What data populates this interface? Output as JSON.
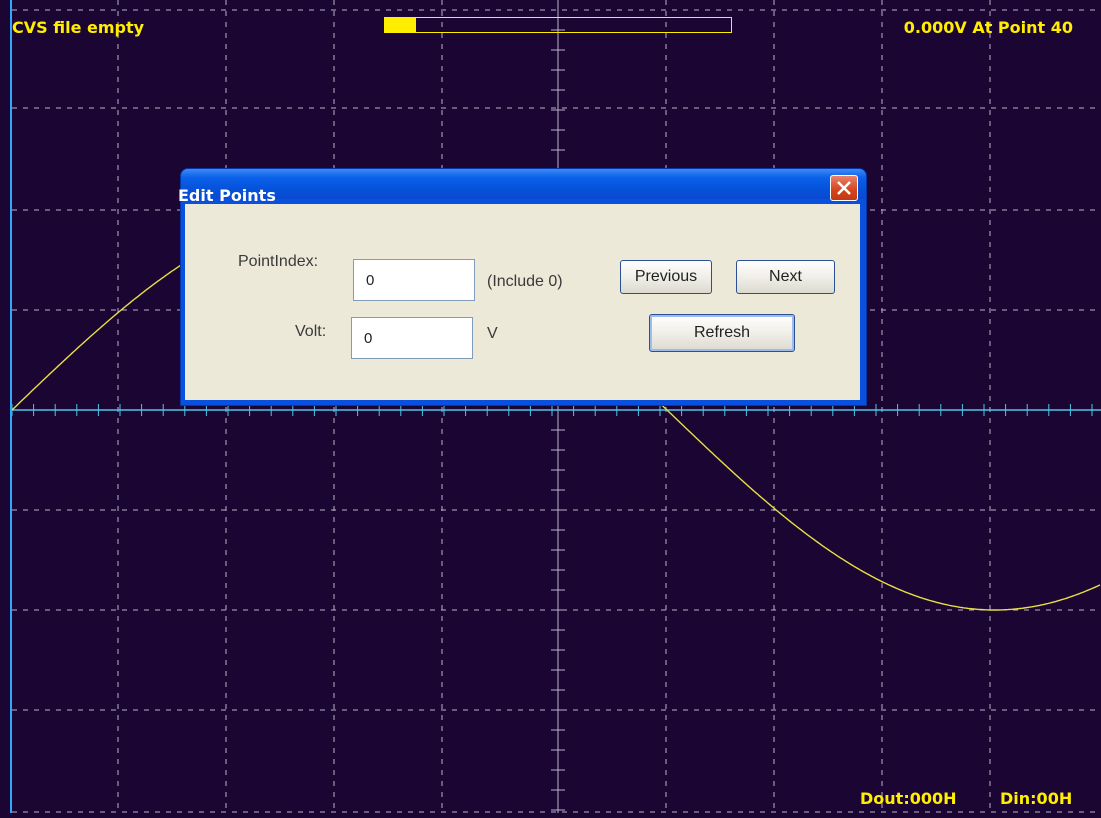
{
  "status": {
    "file_message": "CVS file empty",
    "readout": "0.000V At Point 40",
    "dout": "Dout:000H",
    "din": "Din:00H",
    "progress_fraction": 0.09
  },
  "colors": {
    "background": "#1a0533",
    "grid": "#b8b2c4",
    "trace": "#e7df44",
    "axis": "#4fc6e8",
    "status_text": "#ffee00"
  },
  "dialog": {
    "title": "Edit Points",
    "close_icon": "close-icon",
    "point_index_label": "PointIndex:",
    "point_index_value": "0",
    "include_note": "(Include 0)",
    "volt_label": "Volt:",
    "volt_value": "0",
    "volt_unit": "V",
    "previous_label": "Previous",
    "next_label": "Next",
    "refresh_label": "Refresh"
  },
  "chart_data": {
    "type": "line",
    "series": [
      {
        "x": [
          0,
          10,
          20,
          30,
          40,
          50,
          60,
          70,
          80,
          90,
          100
        ],
        "values": [
          0,
          0.309,
          0.588,
          0.809,
          0.951,
          1,
          0.951,
          0.809,
          0.588,
          0.309,
          0
        ]
      }
    ],
    "grid": true
  }
}
